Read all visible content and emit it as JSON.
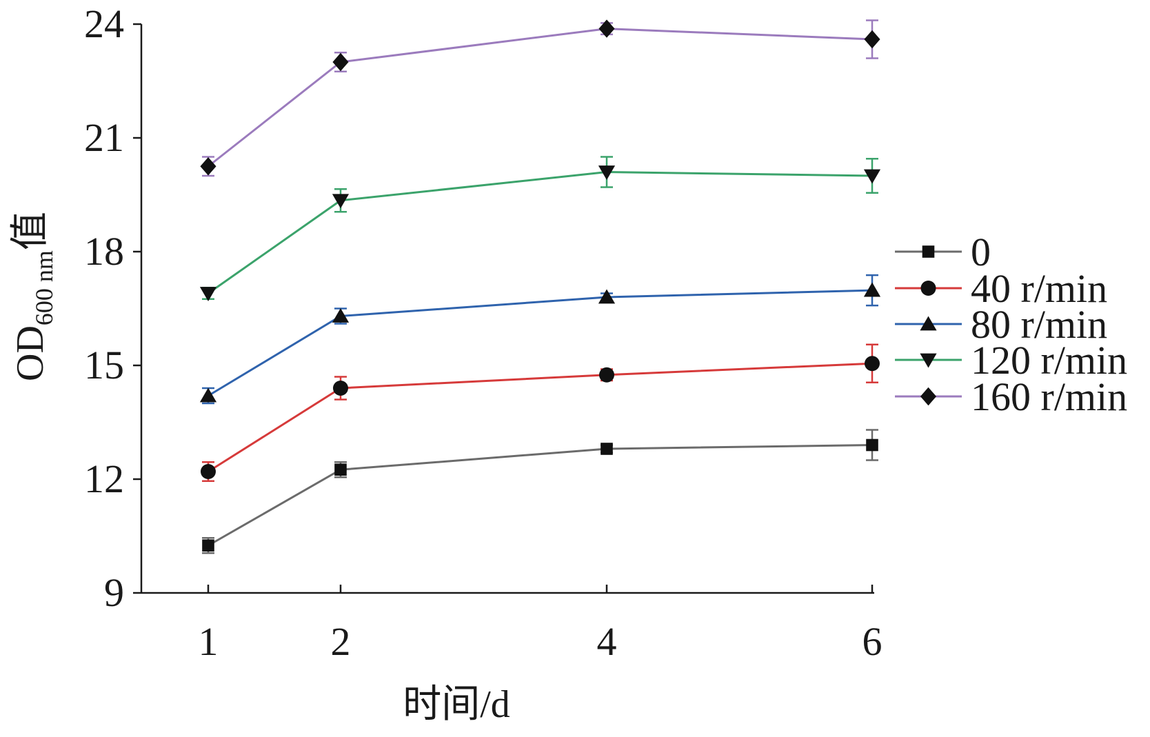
{
  "chart_data": {
    "type": "line",
    "x": [
      1,
      2,
      4,
      6
    ],
    "xlabel": "时间/d",
    "ylabel": {
      "main": "OD",
      "sub": "600 nm",
      "suffix": "值"
    },
    "ylim": [
      9,
      24
    ],
    "yticks": [
      9,
      12,
      15,
      18,
      21,
      24
    ],
    "xticks": [
      1,
      2,
      4,
      6
    ],
    "grid": false,
    "legend_position": "right",
    "series": [
      {
        "name": "0",
        "color": "#6b6b6b",
        "marker": "square",
        "values": [
          10.25,
          12.25,
          12.8,
          12.9
        ],
        "errors": [
          0.2,
          0.2,
          0.1,
          0.4
        ]
      },
      {
        "name": "40 r/min",
        "color": "#d63a3a",
        "marker": "circle",
        "values": [
          12.2,
          14.4,
          14.75,
          15.05
        ],
        "errors": [
          0.25,
          0.3,
          0.15,
          0.5
        ]
      },
      {
        "name": "80 r/min",
        "color": "#2f63ad",
        "marker": "triangle-up",
        "values": [
          14.2,
          16.3,
          16.8,
          16.98
        ],
        "errors": [
          0.2,
          0.2,
          0.1,
          0.4
        ]
      },
      {
        "name": "120 r/min",
        "color": "#3ba36b",
        "marker": "triangle-down",
        "values": [
          16.9,
          19.35,
          20.1,
          20.0
        ],
        "errors": [
          0.15,
          0.3,
          0.4,
          0.45
        ]
      },
      {
        "name": "160 r/min",
        "color": "#9b7bbd",
        "marker": "diamond",
        "values": [
          20.25,
          23.0,
          23.88,
          23.6
        ],
        "errors": [
          0.25,
          0.25,
          0.15,
          0.5
        ]
      }
    ]
  }
}
